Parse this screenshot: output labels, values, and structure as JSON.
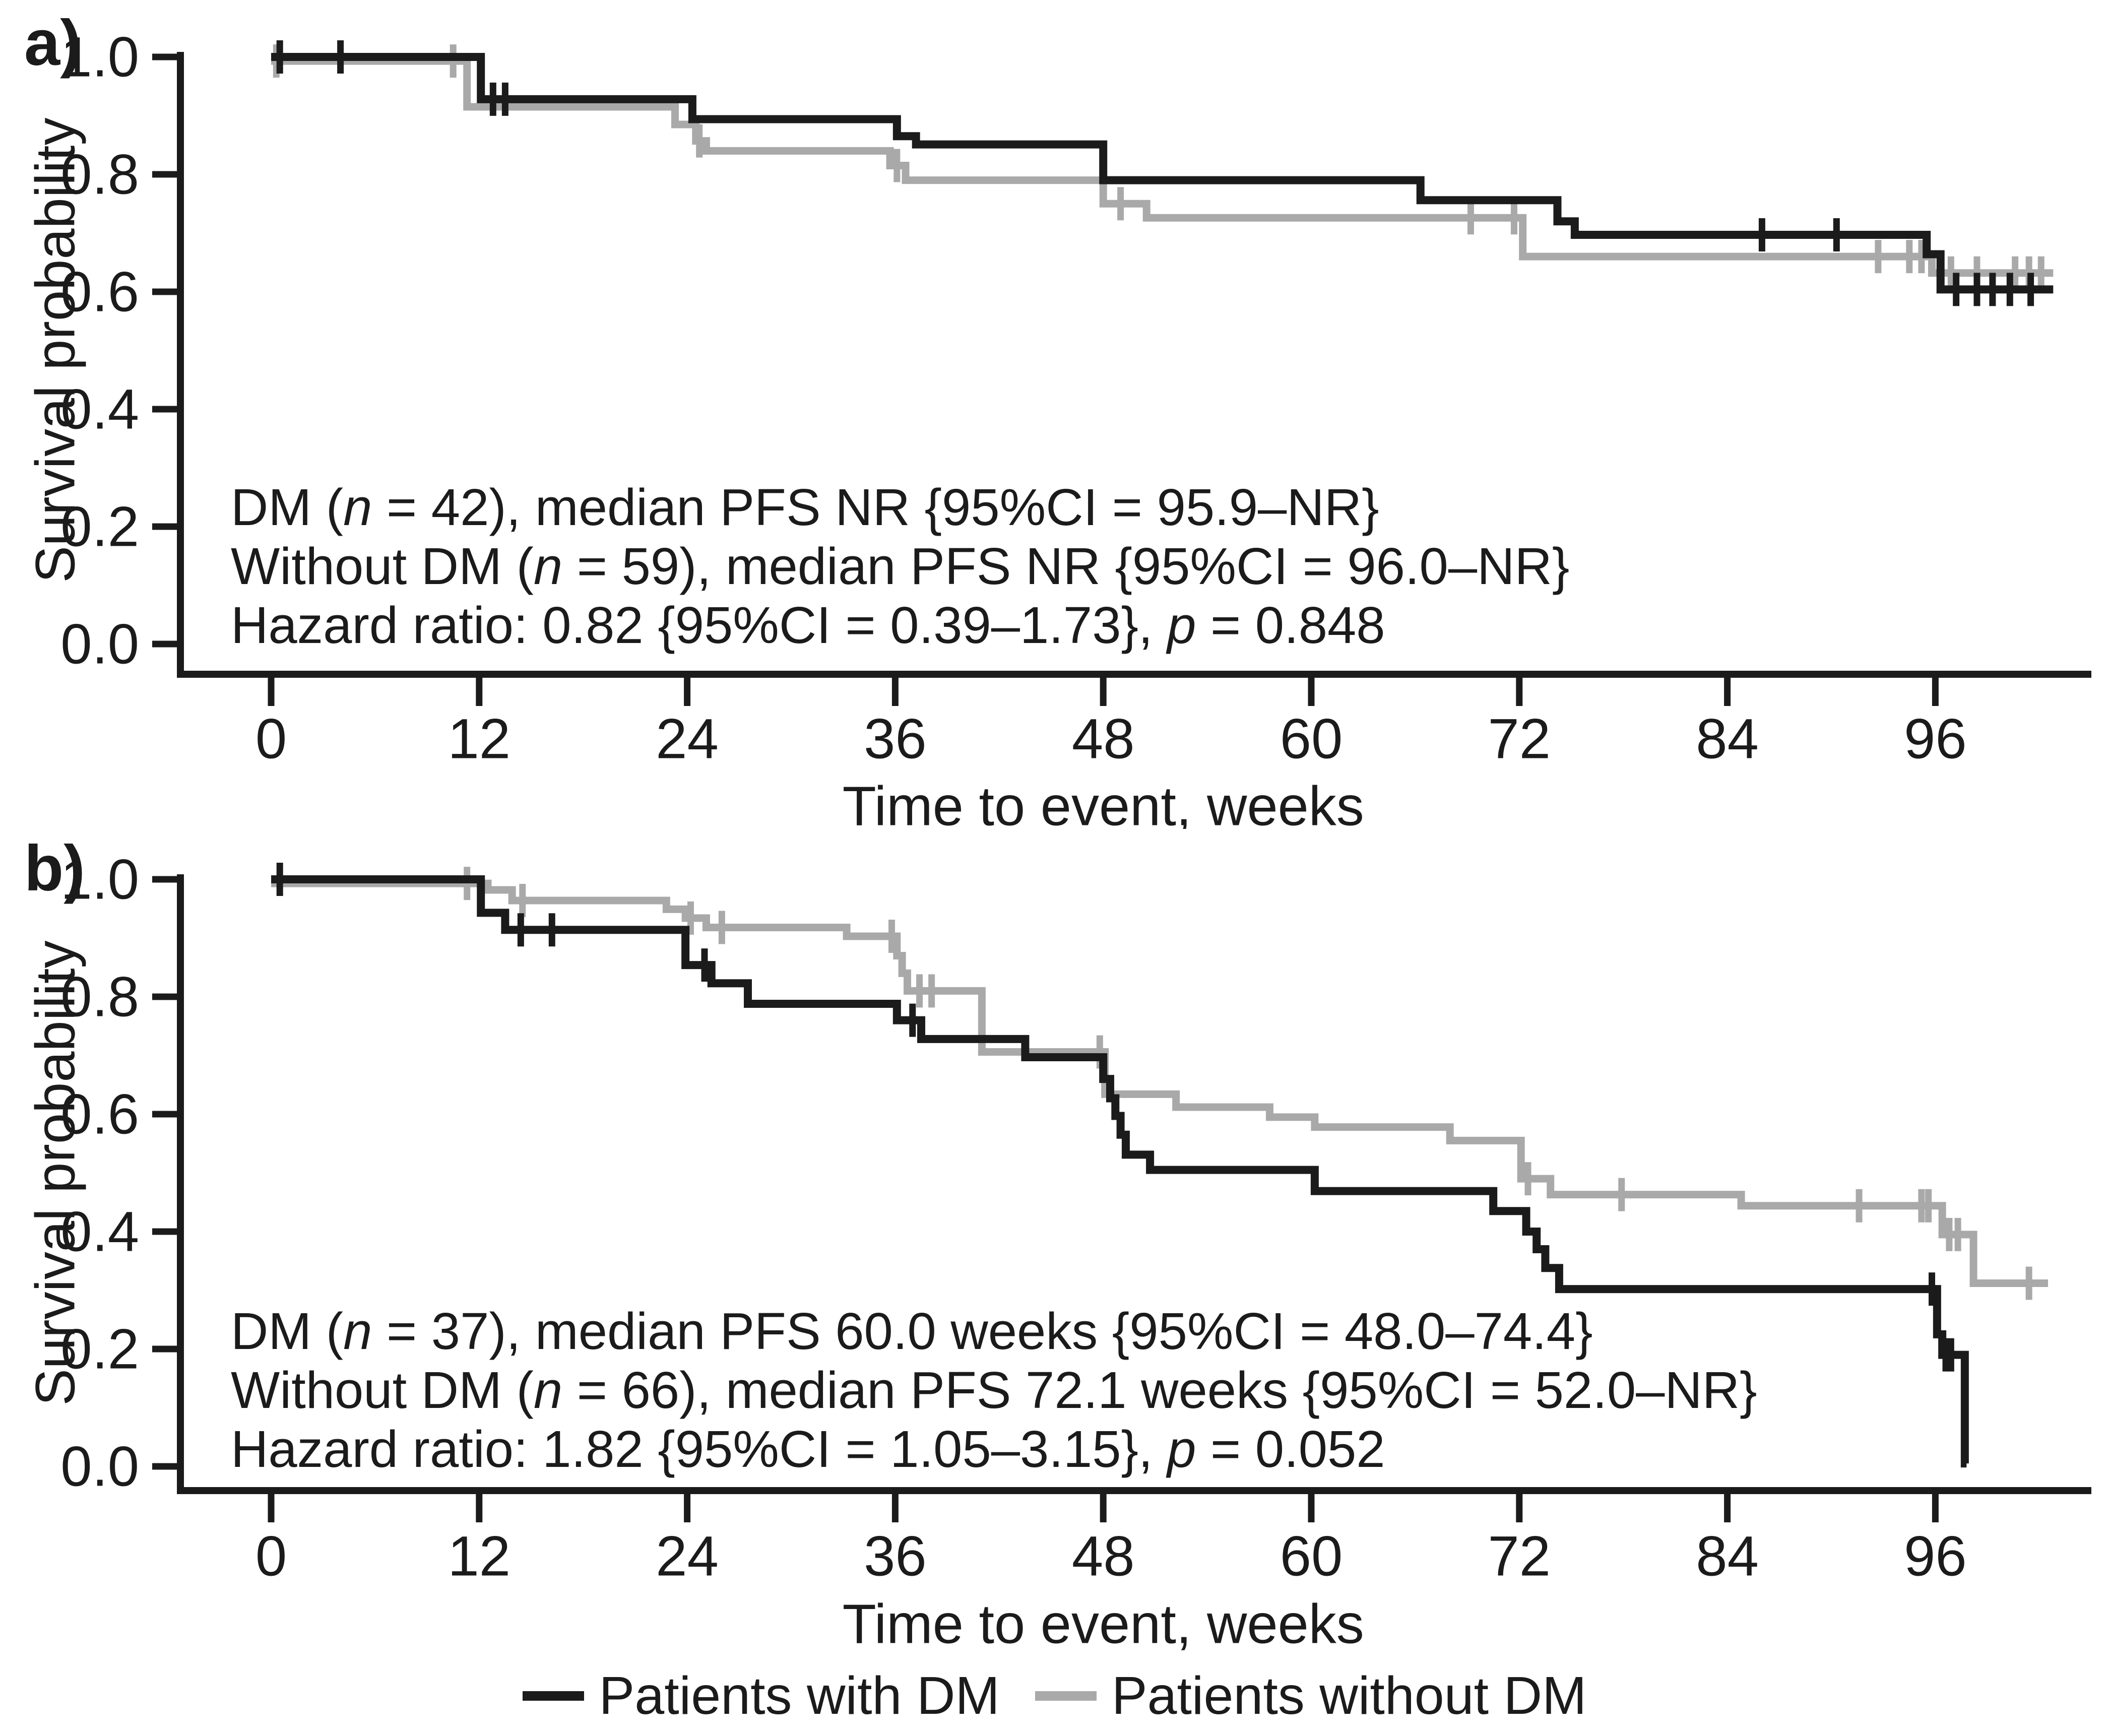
{
  "figure": {
    "background": "#ffffff",
    "colors": {
      "with_dm": "#1b1b1b",
      "without_dm": "#a9a9a9"
    },
    "legend": [
      {
        "label": "Patients with DM",
        "color": "#1b1b1b"
      },
      {
        "label": "Patients without DM",
        "color": "#a9a9a9"
      }
    ]
  },
  "chart_data": [
    {
      "type": "line",
      "subtype": "kaplan-meier-step",
      "panel_label": "a)",
      "xlabel": "Time to event, weeks",
      "ylabel": "Survival probability",
      "xlim": [
        0,
        103
      ],
      "ylim": [
        0.0,
        1.0
      ],
      "xticks": [
        0,
        12,
        24,
        36,
        48,
        60,
        72,
        84,
        96
      ],
      "ytick_labels": [
        "1.0",
        "0.8",
        "0.6",
        "0.4",
        "0.2",
        "0.0"
      ],
      "ytick_values": [
        1.0,
        0.8,
        0.6,
        0.4,
        0.2,
        0.0
      ],
      "grid": false,
      "legend_position": "shared-bottom",
      "annotation_lines": [
        [
          {
            "t": "DM ("
          },
          {
            "t": "n",
            "i": true
          },
          {
            "t": " = 42), median PFS NR {95%CI = 95.9–NR}"
          }
        ],
        [
          {
            "t": "Without DM ("
          },
          {
            "t": "n",
            "i": true
          },
          {
            "t": " = 59), median PFS NR {95%CI = 96.0–NR}"
          }
        ],
        [
          {
            "t": "Hazard ratio: 0.82 {95%CI = 0.39–1.73}, "
          },
          {
            "t": "p",
            "i": true
          },
          {
            "t": " = 0.848"
          }
        ]
      ],
      "series": [
        {
          "name": "Patients with DM",
          "n": 42,
          "color": "#1b1b1b",
          "line_width": 16,
          "end_time": 102.8,
          "steps": [
            [
              0,
              1.0
            ],
            [
              12.1,
              0.928
            ],
            [
              24.3,
              0.894
            ],
            [
              36.1,
              0.865
            ],
            [
              37.2,
              0.851
            ],
            [
              48.0,
              0.79
            ],
            [
              66.3,
              0.756
            ],
            [
              74.2,
              0.72
            ],
            [
              75.2,
              0.697
            ],
            [
              95.5,
              0.664
            ],
            [
              96.3,
              0.604
            ]
          ],
          "censors": [
            [
              0.5,
              1.0
            ],
            [
              4.0,
              1.0
            ],
            [
              12.8,
              0.928
            ],
            [
              13.5,
              0.928
            ],
            [
              86.0,
              0.697
            ],
            [
              90.3,
              0.697
            ],
            [
              97.2,
              0.604
            ],
            [
              98.4,
              0.604
            ],
            [
              99.3,
              0.604
            ],
            [
              100.3,
              0.604
            ],
            [
              101.5,
              0.604
            ]
          ]
        },
        {
          "name": "Patients without DM",
          "n": 59,
          "color": "#a9a9a9",
          "line_width": 15,
          "end_time": 102.8,
          "steps": [
            [
              0,
              0.993
            ],
            [
              11.3,
              0.915
            ],
            [
              23.3,
              0.885
            ],
            [
              24.5,
              0.857
            ],
            [
              25.1,
              0.84
            ],
            [
              35.7,
              0.815
            ],
            [
              36.6,
              0.79
            ],
            [
              48.0,
              0.75
            ],
            [
              50.5,
              0.726
            ],
            [
              72.2,
              0.66
            ],
            [
              95.8,
              0.632
            ]
          ],
          "censors": [
            [
              0.3,
              0.993
            ],
            [
              10.5,
              0.993
            ],
            [
              24.7,
              0.857
            ],
            [
              36.1,
              0.815
            ],
            [
              49.0,
              0.75
            ],
            [
              69.2,
              0.726
            ],
            [
              71.7,
              0.726
            ],
            [
              92.7,
              0.66
            ],
            [
              94.5,
              0.66
            ],
            [
              95.2,
              0.66
            ],
            [
              96.9,
              0.632
            ],
            [
              98.4,
              0.632
            ],
            [
              100.6,
              0.632
            ],
            [
              101.4,
              0.632
            ],
            [
              102.1,
              0.632
            ]
          ]
        }
      ]
    },
    {
      "type": "line",
      "subtype": "kaplan-meier-step",
      "panel_label": "b)",
      "xlabel": "Time to event, weeks",
      "ylabel": "Survival probability",
      "xlim": [
        0,
        103
      ],
      "ylim": [
        0.0,
        1.0
      ],
      "xticks": [
        0,
        12,
        24,
        36,
        48,
        60,
        72,
        84,
        96
      ],
      "ytick_labels": [
        "1.0",
        "0.8",
        "0.6",
        "0.4",
        "0.2",
        "0.0"
      ],
      "ytick_values": [
        1.0,
        0.8,
        0.6,
        0.4,
        0.2,
        0.0
      ],
      "grid": false,
      "legend_position": "shared-bottom",
      "annotation_lines": [
        [
          {
            "t": "DM ("
          },
          {
            "t": "n",
            "i": true
          },
          {
            "t": " = 37), median PFS 60.0 weeks {95%CI = 48.0–74.4}"
          }
        ],
        [
          {
            "t": "Without DM ("
          },
          {
            "t": "n",
            "i": true
          },
          {
            "t": " = 66), median PFS 72.1 weeks {95%CI = 52.0–NR}"
          }
        ],
        [
          {
            "t": "Hazard ratio: 1.82 {95%CI = 1.05–3.15}, "
          },
          {
            "t": "p",
            "i": true
          },
          {
            "t": " = 0.052"
          }
        ]
      ],
      "series": [
        {
          "name": "Patients with DM",
          "n": 37,
          "color": "#1b1b1b",
          "line_width": 16,
          "end_time": 97.8,
          "steps": [
            [
              0,
              1.0
            ],
            [
              12.1,
              0.943
            ],
            [
              13.5,
              0.914
            ],
            [
              23.9,
              0.854
            ],
            [
              25.4,
              0.823
            ],
            [
              27.5,
              0.788
            ],
            [
              36.1,
              0.76
            ],
            [
              37.5,
              0.728
            ],
            [
              43.5,
              0.697
            ],
            [
              48.0,
              0.66
            ],
            [
              48.4,
              0.627
            ],
            [
              48.7,
              0.597
            ],
            [
              49.0,
              0.565
            ],
            [
              49.3,
              0.531
            ],
            [
              50.7,
              0.505
            ],
            [
              60.2,
              0.469
            ],
            [
              70.5,
              0.435
            ],
            [
              72.4,
              0.4
            ],
            [
              73.0,
              0.37
            ],
            [
              73.5,
              0.338
            ],
            [
              74.3,
              0.302
            ],
            [
              96.1,
              0.225
            ],
            [
              96.4,
              0.19
            ],
            [
              97.7,
              0.005
            ]
          ],
          "censors": [
            [
              0.5,
              1.0
            ],
            [
              14.4,
              0.914
            ],
            [
              16.2,
              0.914
            ],
            [
              25.0,
              0.854
            ],
            [
              37.0,
              0.76
            ],
            [
              95.8,
              0.302
            ],
            [
              96.6,
              0.19
            ],
            [
              96.9,
              0.19
            ]
          ]
        },
        {
          "name": "Patients without DM",
          "n": 66,
          "color": "#a9a9a9",
          "line_width": 15,
          "end_time": 102.5,
          "steps": [
            [
              0,
              0.993
            ],
            [
              12.5,
              0.982
            ],
            [
              13.9,
              0.964
            ],
            [
              22.8,
              0.949
            ],
            [
              23.9,
              0.934
            ],
            [
              25.1,
              0.918
            ],
            [
              33.2,
              0.903
            ],
            [
              36.1,
              0.87
            ],
            [
              36.4,
              0.84
            ],
            [
              36.7,
              0.81
            ],
            [
              41.0,
              0.706
            ],
            [
              48.1,
              0.634
            ],
            [
              52.2,
              0.612
            ],
            [
              57.6,
              0.595
            ],
            [
              60.2,
              0.578
            ],
            [
              68.0,
              0.555
            ],
            [
              72.1,
              0.49
            ],
            [
              73.8,
              0.463
            ],
            [
              84.8,
              0.444
            ],
            [
              96.4,
              0.395
            ],
            [
              98.2,
              0.312
            ]
          ],
          "censors": [
            [
              11.3,
              0.993
            ],
            [
              14.5,
              0.964
            ],
            [
              24.2,
              0.934
            ],
            [
              26.0,
              0.918
            ],
            [
              35.8,
              0.903
            ],
            [
              37.4,
              0.81
            ],
            [
              38.1,
              0.81
            ],
            [
              47.8,
              0.706
            ],
            [
              72.5,
              0.49
            ],
            [
              77.9,
              0.463
            ],
            [
              91.6,
              0.444
            ],
            [
              95.2,
              0.444
            ],
            [
              95.6,
              0.444
            ],
            [
              96.8,
              0.395
            ],
            [
              97.3,
              0.395
            ],
            [
              101.4,
              0.312
            ]
          ]
        }
      ]
    }
  ]
}
